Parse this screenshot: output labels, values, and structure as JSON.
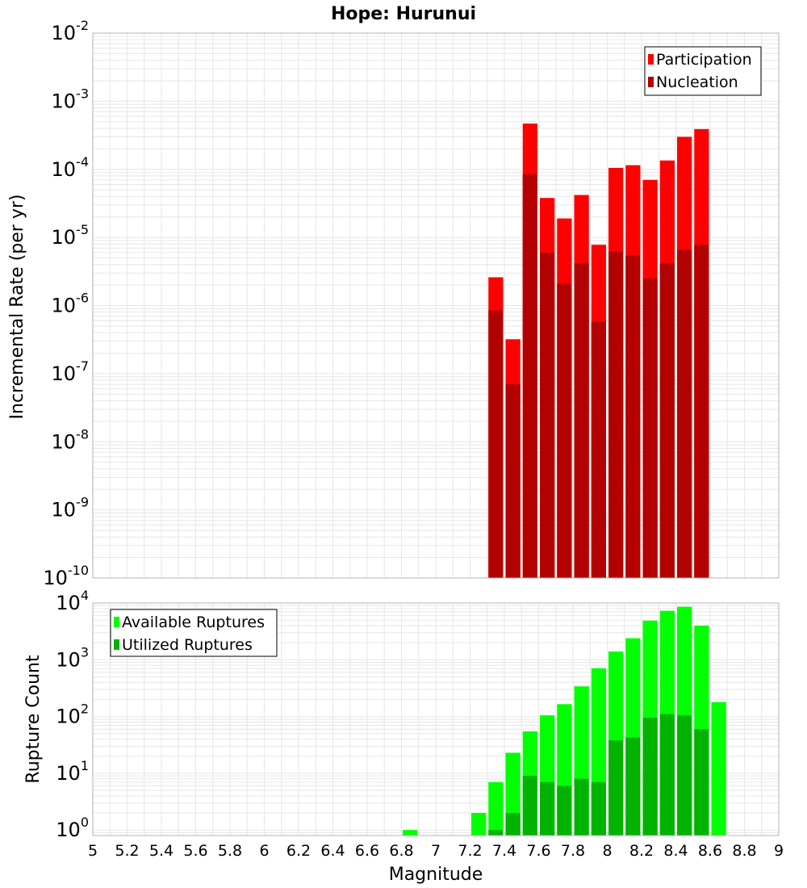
{
  "title": "Hope: Hurunui",
  "colors": {
    "participation": "#ff0000",
    "nucleation": "#b30000",
    "available": "#00ff00",
    "utilized": "#00b300",
    "grid": "#e6e6e6",
    "frame": "#b3b3b3"
  },
  "chart_data": [
    {
      "type": "bar",
      "panel": "rates",
      "xlabel": "Magnitude",
      "ylabel": "Incremental Rate (per yr)",
      "yscale": "log",
      "ylim": [
        1e-10,
        0.01
      ],
      "xlim": [
        5,
        9
      ],
      "grid": true,
      "legend_position": "top-right",
      "y_tick_labels": [
        {
          "base": "10",
          "exp": "-10"
        },
        {
          "base": "10",
          "exp": "-9"
        },
        {
          "base": "10",
          "exp": "-8"
        },
        {
          "base": "10",
          "exp": "-7"
        },
        {
          "base": "10",
          "exp": "-6"
        },
        {
          "base": "10",
          "exp": "-5"
        },
        {
          "base": "10",
          "exp": "-4"
        },
        {
          "base": "10",
          "exp": "-3"
        },
        {
          "base": "10",
          "exp": "-2"
        }
      ],
      "x": [
        7.35,
        7.45,
        7.55,
        7.65,
        7.75,
        7.85,
        7.95,
        8.05,
        8.15,
        8.25,
        8.35,
        8.45,
        8.55
      ],
      "series": [
        {
          "name": "Participation",
          "values": [
            2.6e-06,
            3.2e-07,
            0.00047,
            3.8e-05,
            1.9e-05,
            4.2e-05,
            7.8e-06,
            0.000105,
            0.000115,
            7e-05,
            0.000135,
            0.0003,
            0.00039
          ]
        },
        {
          "name": "Nucleation",
          "values": [
            8.5e-07,
            7e-08,
            8.5e-05,
            6e-06,
            2.1e-06,
            4.2e-06,
            5.8e-07,
            6.2e-06,
            5.4e-06,
            2.5e-06,
            4.2e-06,
            6.6e-06,
            7.8e-06
          ]
        }
      ]
    },
    {
      "type": "bar",
      "panel": "counts",
      "xlabel": "Magnitude",
      "ylabel": "Rupture Count",
      "yscale": "log",
      "ylim": [
        0.8,
        10000
      ],
      "xlim": [
        5,
        9
      ],
      "grid": true,
      "legend_position": "top-left",
      "x_tick_labels": [
        "5",
        "5.2",
        "5.4",
        "5.6",
        "5.8",
        "6",
        "6.2",
        "6.4",
        "6.6",
        "6.8",
        "7",
        "7.2",
        "7.4",
        "7.6",
        "7.8",
        "8",
        "8.2",
        "8.4",
        "8.6",
        "8.8",
        "9"
      ],
      "y_tick_labels": [
        {
          "base": "10",
          "exp": "0"
        },
        {
          "base": "10",
          "exp": "1"
        },
        {
          "base": "10",
          "exp": "2"
        },
        {
          "base": "10",
          "exp": "3"
        },
        {
          "base": "10",
          "exp": "4"
        }
      ],
      "x": [
        6.85,
        7.25,
        7.35,
        7.45,
        7.55,
        7.65,
        7.75,
        7.85,
        7.95,
        8.05,
        8.15,
        8.25,
        8.35,
        8.45,
        8.55,
        8.65
      ],
      "series": [
        {
          "name": "Available Ruptures",
          "values": [
            1,
            2,
            7,
            23,
            55,
            105,
            165,
            340,
            710,
            1400,
            2400,
            4900,
            7300,
            8600,
            4000,
            180
          ]
        },
        {
          "name": "Utilized Ruptures",
          "values": [
            0,
            0,
            1,
            2,
            9,
            7,
            6,
            8,
            7,
            38,
            43,
            95,
            110,
            105,
            60,
            0
          ]
        }
      ]
    }
  ]
}
